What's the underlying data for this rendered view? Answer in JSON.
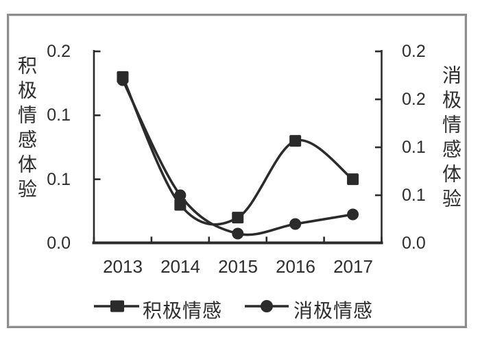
{
  "chart_data": {
    "type": "line",
    "smooth": true,
    "categories": [
      "2013",
      "2014",
      "2015",
      "2016",
      "2017"
    ],
    "series": [
      {
        "name": "积极情感",
        "marker": "square",
        "axis": "left",
        "values": [
          0.13,
          0.03,
          0.02,
          0.08,
          0.05
        ]
      },
      {
        "name": "消极情感",
        "marker": "circle",
        "axis": "right",
        "values": [
          0.17,
          0.05,
          0.01,
          0.02,
          0.03
        ]
      }
    ],
    "left_axis": {
      "title": "积极情感体验",
      "range": [
        0,
        0.15
      ],
      "tick_step": 0.05,
      "tick_labels": [
        "0.2",
        "0.1",
        "0.1",
        "0.0"
      ]
    },
    "right_axis": {
      "title": "消极情感体验",
      "range": [
        0,
        0.2
      ],
      "tick_step": 0.05,
      "tick_labels": [
        "0.2",
        "0.2",
        "0.1",
        "0.1",
        "0.0"
      ]
    },
    "legend": {
      "position": "bottom",
      "items": [
        "积极情感",
        "消极情感"
      ]
    },
    "grid": false,
    "colors": {
      "ink": "#2b2b2b",
      "frame_border": "#8d8d8d",
      "background": "#ffffff"
    }
  }
}
